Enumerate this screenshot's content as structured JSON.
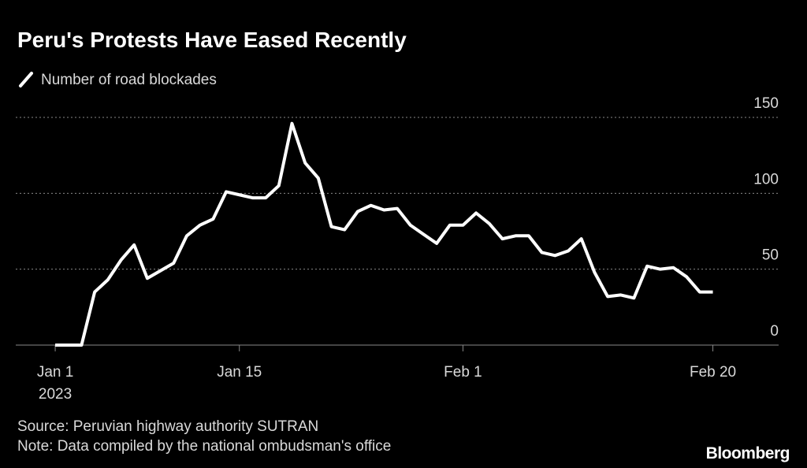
{
  "chart_data": {
    "type": "line",
    "title": "Peru's Protests Have Eased Recently",
    "source": "Source: Peruvian highway authority SUTRAN",
    "note": "Note: Data compiled by the national ombudsman's office",
    "brand": "Bloomberg",
    "year_label": "2023",
    "x": [
      "2023-01-01",
      "2023-01-02",
      "2023-01-03",
      "2023-01-04",
      "2023-01-05",
      "2023-01-06",
      "2023-01-07",
      "2023-01-08",
      "2023-01-09",
      "2023-01-10",
      "2023-01-11",
      "2023-01-12",
      "2023-01-13",
      "2023-01-14",
      "2023-01-15",
      "2023-01-16",
      "2023-01-17",
      "2023-01-18",
      "2023-01-19",
      "2023-01-20",
      "2023-01-21",
      "2023-01-22",
      "2023-01-23",
      "2023-01-24",
      "2023-01-25",
      "2023-01-26",
      "2023-01-27",
      "2023-01-28",
      "2023-01-29",
      "2023-01-30",
      "2023-01-31",
      "2023-02-01",
      "2023-02-02",
      "2023-02-03",
      "2023-02-04",
      "2023-02-05",
      "2023-02-06",
      "2023-02-07",
      "2023-02-08",
      "2023-02-09",
      "2023-02-10",
      "2023-02-11",
      "2023-02-12",
      "2023-02-13",
      "2023-02-14",
      "2023-02-15",
      "2023-02-16",
      "2023-02-17",
      "2023-02-18",
      "2023-02-19",
      "2023-02-20"
    ],
    "series": [
      {
        "name": "Number of road blockades",
        "color": "#ffffff",
        "values": [
          0,
          0,
          0,
          35,
          43,
          56,
          66,
          44,
          49,
          54,
          72,
          79,
          83,
          101,
          99,
          97,
          97,
          105,
          146,
          120,
          110,
          78,
          76,
          88,
          92,
          89,
          90,
          79,
          73,
          67,
          79,
          79,
          87,
          80,
          70,
          72,
          72,
          61,
          59,
          62,
          70,
          48,
          32,
          33,
          31,
          52,
          50,
          51,
          45,
          35,
          35
        ]
      }
    ],
    "xlim": [
      "2022-12-29",
      "2023-02-25"
    ],
    "xticks": [
      {
        "value": "2023-01-01",
        "label": "Jan 1"
      },
      {
        "value": "2023-01-15",
        "label": "Jan 15"
      },
      {
        "value": "2023-02-01",
        "label": "Feb 1"
      },
      {
        "value": "2023-02-20",
        "label": "Feb 20"
      }
    ],
    "ylim": [
      0,
      150
    ],
    "yticks": [
      0,
      50,
      100,
      150
    ],
    "grid": true
  }
}
